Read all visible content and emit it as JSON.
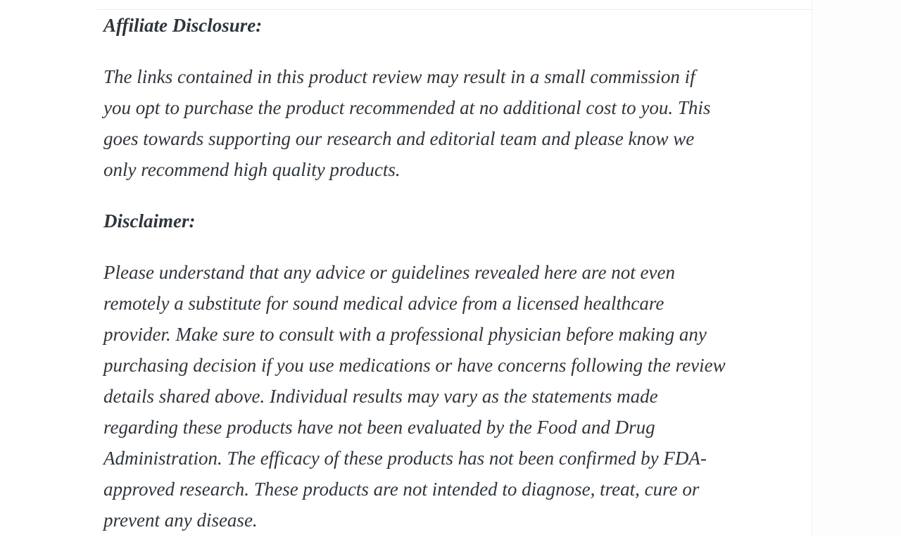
{
  "page": {
    "background": "#ffffff",
    "text_color": "#2f353b",
    "divider_color": "#ececec"
  },
  "article": {
    "affiliate_disclosure": {
      "heading": "Affiliate Disclosure:",
      "body": "The links contained in this product review may result in a small commission if\nyou opt to purchase the product recommended at no additional cost to you. This\ngoes towards supporting our research and editorial team and please know we\nonly recommend high quality products."
    },
    "disclaimer": {
      "heading": "Disclaimer:",
      "body": "Please understand that any advice or guidelines revealed here are not even\nremotely a substitute for sound medical advice from a licensed healthcare\nprovider. Make sure to consult with a professional physician before making any\npurchasing decision if you use medications or have concerns following the review\ndetails shared above. Individual results may vary as the statements made\nregarding these products have not been evaluated by the Food and Drug\nAdministration. The efficacy of these products has not been confirmed by FDA-\napproved research. These products are not intended to diagnose, treat, cure or\nprevent any disease."
    }
  }
}
